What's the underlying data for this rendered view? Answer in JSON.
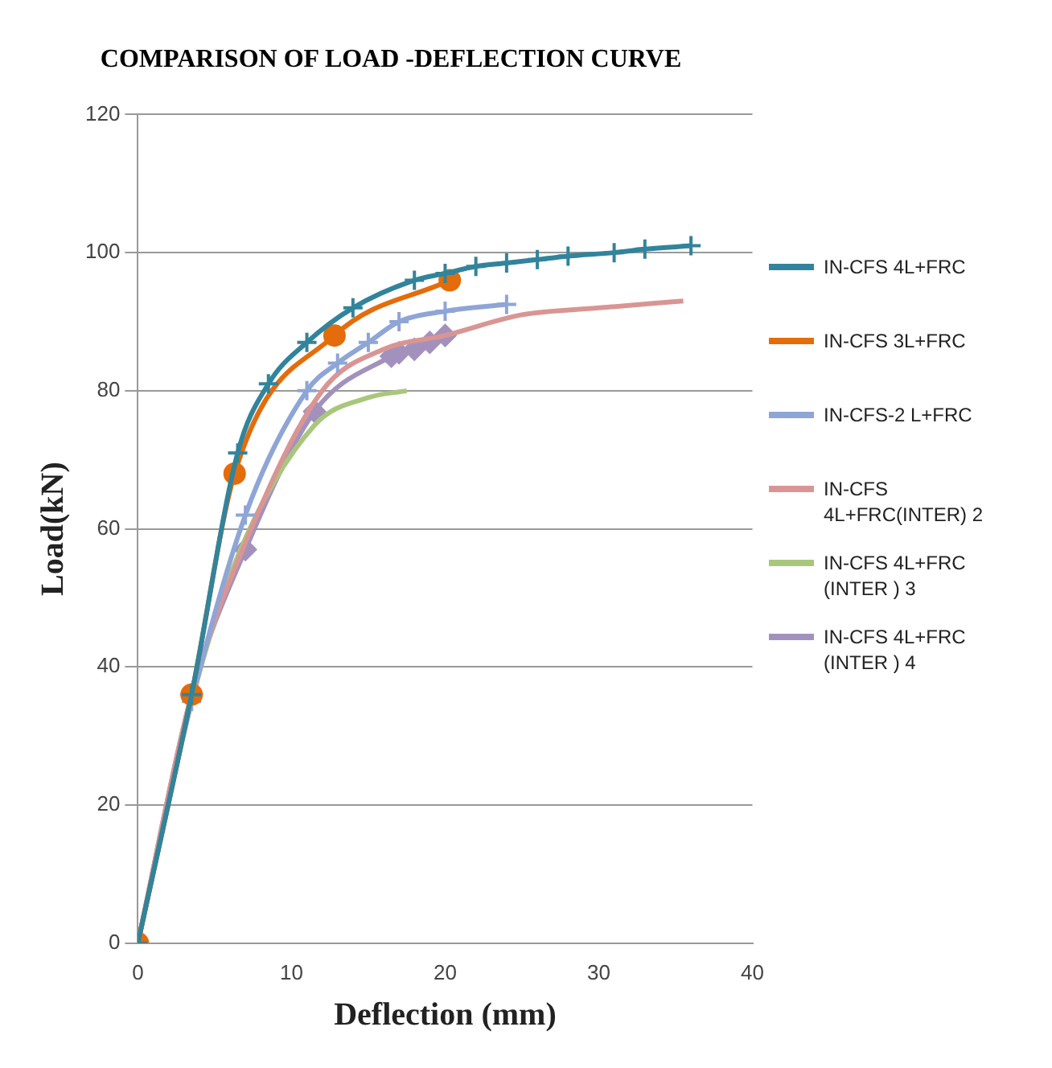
{
  "chart_data": {
    "type": "line",
    "title": "COMPARISON OF LOAD -DEFLECTION CURVE",
    "xlabel": "Deflection (mm)",
    "ylabel": "Load(kN)",
    "xlim": [
      0,
      40
    ],
    "xticks": [
      0,
      10,
      20,
      30,
      40
    ],
    "ylim": [
      0,
      120
    ],
    "yticks": [
      0,
      20,
      40,
      60,
      80,
      100,
      120
    ],
    "grid": "y",
    "legend": "right",
    "series": [
      {
        "name": "IN-CFS 4L+FRC",
        "color": "#31849b",
        "marker": "cross",
        "x": [
          0,
          3.5,
          6.5,
          8.5,
          11,
          14,
          18,
          20,
          22,
          24,
          26,
          28,
          31,
          33,
          36
        ],
        "values": [
          0,
          36,
          71,
          81,
          87,
          92,
          96,
          97,
          98,
          98.5,
          99,
          99.5,
          100,
          100.5,
          101
        ]
      },
      {
        "name": "IN-CFS 3L+FRC",
        "color": "#e46c0a",
        "marker": "circle",
        "x": [
          0,
          3.5,
          6.3,
          12.8,
          20.3
        ],
        "values": [
          0,
          36,
          68,
          88,
          96
        ]
      },
      {
        "name": "IN-CFS-2 L+FRC",
        "color": "#8ea5d6",
        "marker": "cross",
        "x": [
          0,
          3.5,
          7,
          11,
          13,
          15,
          17,
          20,
          24
        ],
        "values": [
          0,
          35,
          62,
          80,
          84,
          87,
          90,
          91.5,
          92.5
        ]
      },
      {
        "name": "IN-CFS 4L+FRC(INTER) 2",
        "color": "#d99594",
        "marker": "none",
        "x": [
          0,
          3.5,
          7,
          12,
          16,
          20,
          25,
          30,
          35.5
        ],
        "values": [
          0,
          36,
          58,
          80,
          86,
          88,
          91,
          92,
          93
        ]
      },
      {
        "name": "IN-CFS 4L+FRC (INTER ) 3",
        "color": "#a9c77c",
        "marker": "none",
        "x": [
          0,
          3.5,
          6.5,
          11.5,
          15,
          17.5
        ],
        "values": [
          0,
          35,
          56,
          75,
          79,
          80
        ]
      },
      {
        "name": "IN-CFS 4L+FRC (INTER ) 4",
        "color": "#a391bd",
        "marker": "diamond",
        "x": [
          0,
          3.5,
          7,
          11.5,
          16.5,
          17,
          18,
          19,
          20
        ],
        "values": [
          0,
          36,
          57,
          77,
          85,
          85.5,
          86,
          87,
          88
        ]
      }
    ]
  }
}
